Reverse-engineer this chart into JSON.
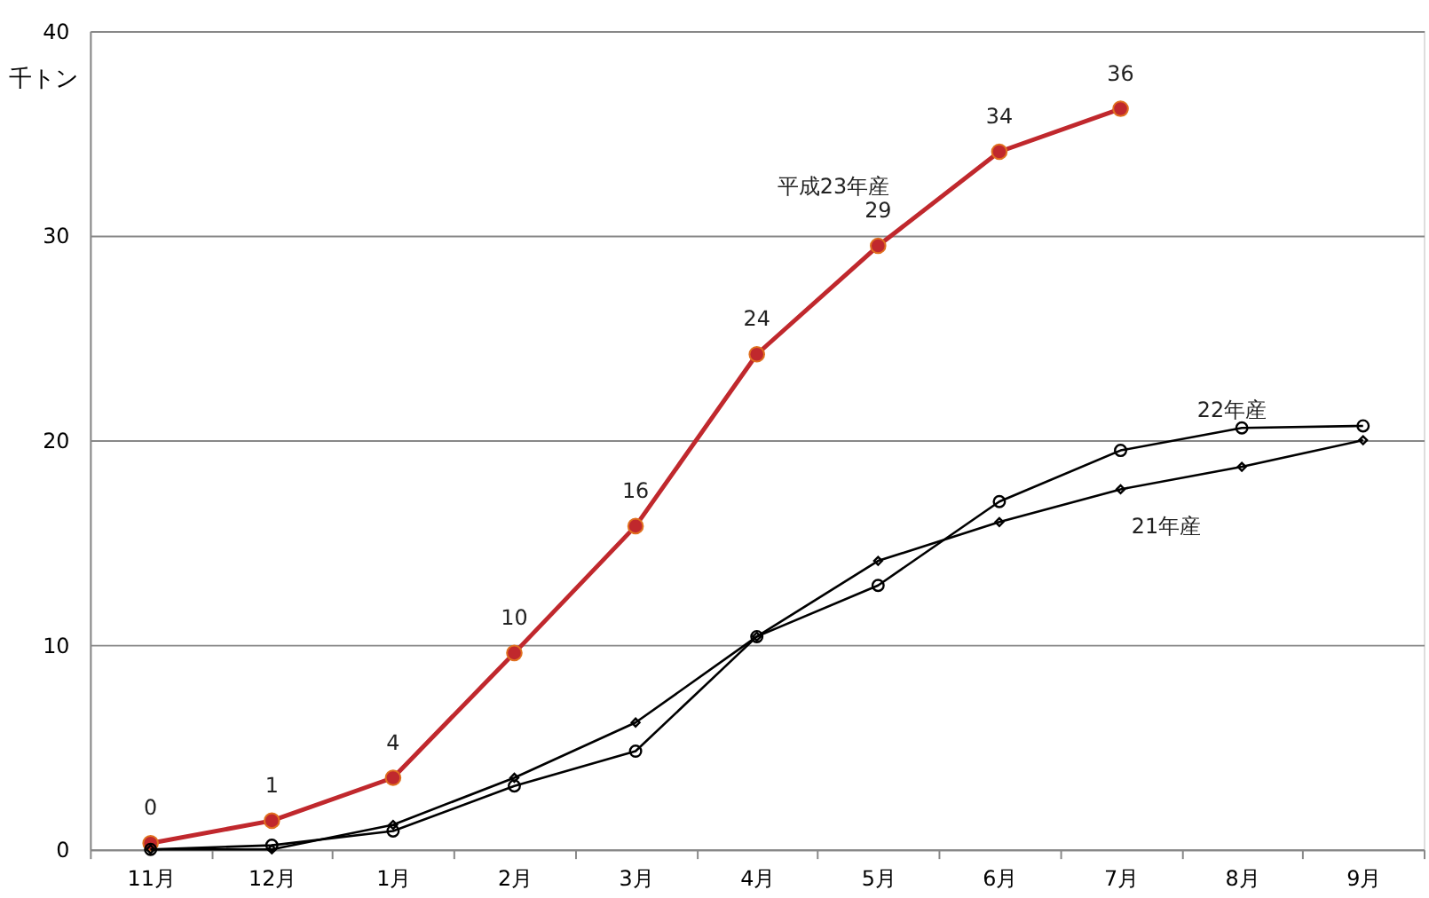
{
  "chart_data": {
    "type": "line",
    "ylabel": "千トン",
    "categories": [
      "11月",
      "12月",
      "1月",
      "2月",
      "3月",
      "4月",
      "5月",
      "6月",
      "7月",
      "8月",
      "9月"
    ],
    "series": [
      {
        "name": "平成23年産",
        "color": "#c0282d",
        "marker": "circle",
        "values": [
          0.3,
          1.4,
          3.5,
          9.6,
          15.8,
          24.2,
          29.5,
          34.1,
          36.2,
          null,
          null
        ],
        "value_labels": [
          "0",
          "1",
          "4",
          "10",
          "16",
          "24",
          "29",
          "34",
          "36",
          null,
          null
        ]
      },
      {
        "name": "22年産",
        "color": "#000000",
        "marker": "circle",
        "values": [
          0,
          0.2,
          0.9,
          3.1,
          4.8,
          10.4,
          12.9,
          17.0,
          19.5,
          20.6,
          20.7
        ]
      },
      {
        "name": "21年産",
        "color": "#000000",
        "marker": "diamond",
        "values": [
          0,
          0,
          1.2,
          3.5,
          6.2,
          10.4,
          14.1,
          16.0,
          17.6,
          18.7,
          20.0
        ]
      }
    ],
    "ylim": [
      0,
      40
    ],
    "yticks": [
      0,
      10,
      20,
      30,
      40
    ],
    "grid": "y"
  }
}
